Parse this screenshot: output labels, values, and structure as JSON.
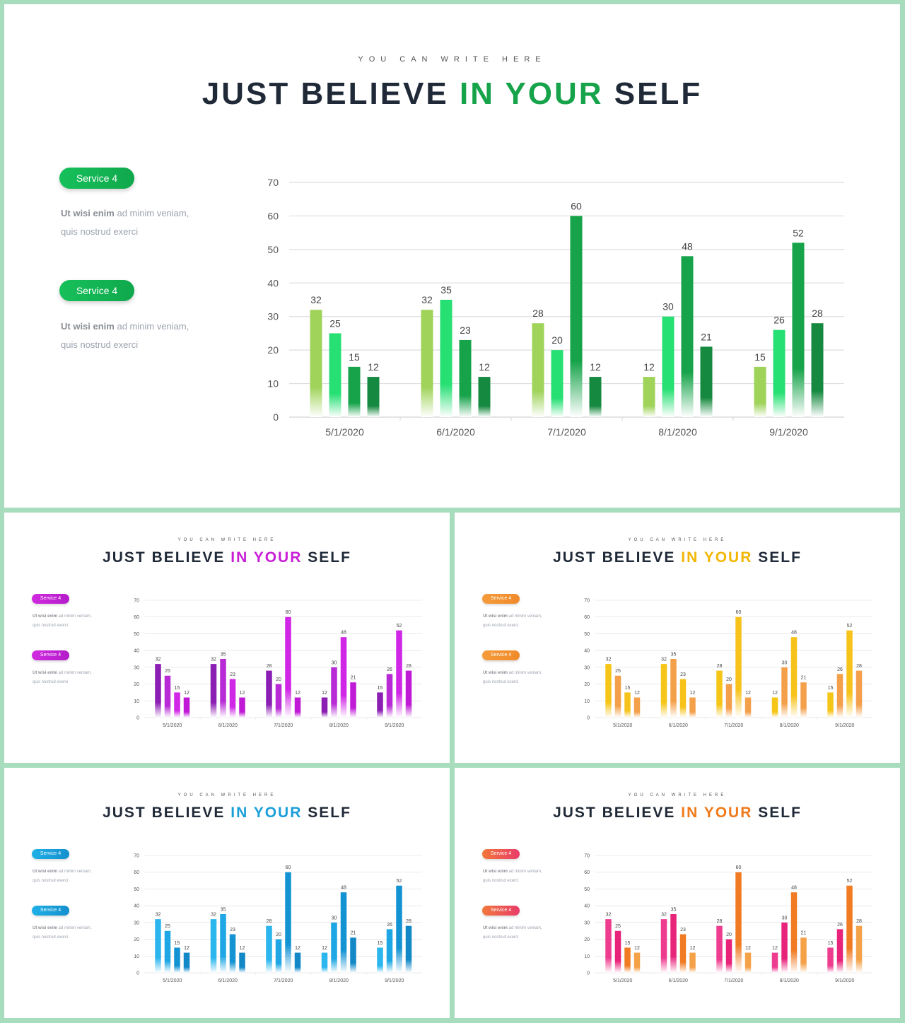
{
  "slide_text": {
    "subtitle": "YOU CAN WRITE HERE",
    "title_part1": "JUST BELIEVE ",
    "title_accent": "IN YOUR",
    "title_part3": " SELF",
    "services": [
      {
        "label": "Service 4",
        "desc_strong": "Ut wisi enim",
        "desc_line1_rest": " ad minim veniam,",
        "desc_line2": "quis nostrud exerci"
      },
      {
        "label": "Service 4",
        "desc_strong": "Ut wisi enim",
        "desc_line1_rest": " ad minim veniam,",
        "desc_line2": "quis nostrud exerci"
      }
    ]
  },
  "themes": [
    {
      "id": "green",
      "accent": "#16a34a",
      "pill": [
        "#16c05a",
        "#0fa84c"
      ],
      "series_colors": [
        [
          "#9fd35a",
          "#ffffff"
        ],
        [
          "#27e074",
          "#ffffff"
        ],
        [
          "#16a34a",
          "#ffffff"
        ],
        [
          "#15893f",
          "#ffffff"
        ]
      ]
    },
    {
      "id": "purple",
      "accent": "#c81ed6",
      "pill": [
        "#d12ae0",
        "#b31cc9"
      ],
      "series_colors": [
        [
          "#8c1fb3",
          "#ffffff"
        ],
        [
          "#b82ad6",
          "#ffffff"
        ],
        [
          "#d026e6",
          "#ffffff"
        ],
        [
          "#c01ad6",
          "#ffffff"
        ]
      ]
    },
    {
      "id": "yellow",
      "accent": "#f2b705",
      "pill": [
        "#f59b3a",
        "#f08a2a"
      ],
      "series_colors": [
        [
          "#f5c518",
          "#ffffff"
        ],
        [
          "#f4a04a",
          "#ffffff"
        ],
        [
          "#f7c21a",
          "#ffffff"
        ],
        [
          "#f49f4a",
          "#ffffff"
        ]
      ]
    },
    {
      "id": "blue",
      "accent": "#1a9fd9",
      "pill": [
        "#1fb0e8",
        "#148fcc"
      ],
      "series_colors": [
        [
          "#2bb6ee",
          "#ffffff"
        ],
        [
          "#1ea7e4",
          "#ffffff"
        ],
        [
          "#1493d3",
          "#ffffff"
        ],
        [
          "#1388c7",
          "#ffffff"
        ]
      ]
    },
    {
      "id": "pink",
      "accent": "#f07a1a",
      "pill": [
        "#f2783a",
        "#e93b6a"
      ],
      "series_colors": [
        [
          "#ee3d8f",
          "#ffffff"
        ],
        [
          "#e8247a",
          "#ffffff"
        ],
        [
          "#f07b22",
          "#ffffff"
        ],
        [
          "#f4a148",
          "#ffffff"
        ]
      ]
    }
  ],
  "chart_data": {
    "type": "bar",
    "categories": [
      "5/1/2020",
      "6/1/2020",
      "7/1/2020",
      "8/1/2020",
      "9/1/2020"
    ],
    "series": [
      {
        "values": [
          32,
          32,
          28,
          12,
          15
        ]
      },
      {
        "values": [
          25,
          35,
          20,
          30,
          26
        ]
      },
      {
        "values": [
          15,
          23,
          60,
          48,
          52
        ]
      },
      {
        "values": [
          12,
          12,
          12,
          21,
          28
        ]
      }
    ],
    "ylim": [
      0,
      70
    ],
    "yticks": [
      0,
      10,
      20,
      30,
      40,
      50,
      60,
      70
    ],
    "grid": true,
    "data_labels": true
  }
}
